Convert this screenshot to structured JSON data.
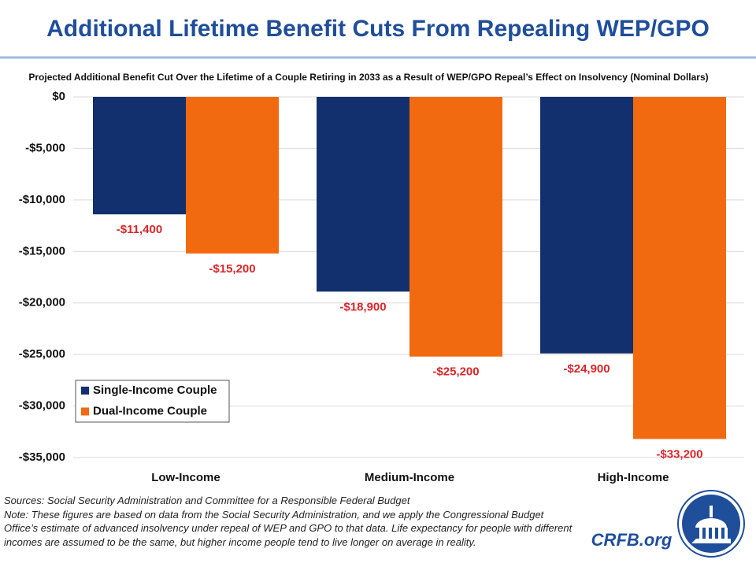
{
  "chart_data": {
    "type": "bar",
    "title": "Additional Lifetime Benefit Cuts From Repealing WEP/GPO",
    "subtitle": "Projected Additional Benefit Cut Over the Lifetime of a Couple Retiring in 2033 as a Result of WEP/GPO Repeal’s Effect on Insolvency (Nominal Dollars)",
    "categories": [
      "Low-Income",
      "Medium-Income",
      "High-Income"
    ],
    "series": [
      {
        "name": "Single-Income Couple",
        "color": "#13306e",
        "values": [
          -11400,
          -18900,
          -24900
        ],
        "value_labels": [
          "-$11,400",
          "-$18,900",
          "-$24,900"
        ]
      },
      {
        "name": "Dual-Income Couple",
        "color": "#f26a0f",
        "values": [
          -15200,
          -25200,
          -33200
        ],
        "value_labels": [
          "-$15,200",
          "-$25,200",
          "-$33,200"
        ]
      }
    ],
    "ylim": [
      -35000,
      0
    ],
    "yticks": [
      {
        "value": 0,
        "label": "$0"
      },
      {
        "value": -5000,
        "label": "-$5,000"
      },
      {
        "value": -10000,
        "label": "-$10,000"
      },
      {
        "value": -15000,
        "label": "-$15,000"
      },
      {
        "value": -20000,
        "label": "-$20,000"
      },
      {
        "value": -25000,
        "label": "-$25,000"
      },
      {
        "value": -30000,
        "label": "-$30,000"
      },
      {
        "value": -35000,
        "label": "-$35,000"
      }
    ],
    "grid": true,
    "legend": "lower left"
  },
  "sources": "Sources: Social Security Administration and Committee for a Responsible Federal Budget",
  "note": "Note: These figures are based on data from the Social Security Administration, and we apply the Congressional Budget Office’s estimate of advanced insolvency under repeal of WEP and GPO to that data. Life expectancy for people with different incomes are assumed to be the same, but higher income people tend to live longer on average in reality.",
  "brand": "CRFB.org"
}
